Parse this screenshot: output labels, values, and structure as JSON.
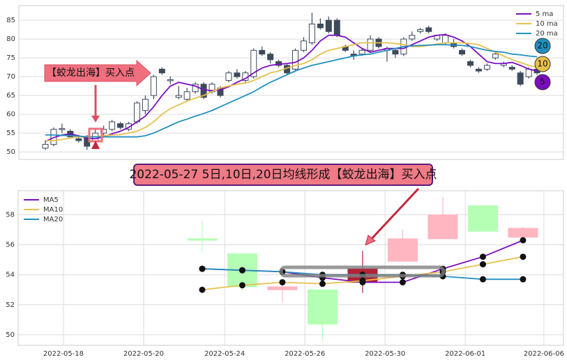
{
  "chart_data": [
    {
      "type": "candlestick",
      "annotation": "【蛟龙出海】买入点",
      "ylim": [
        48,
        88.9
      ],
      "yticks": [
        50,
        55,
        60,
        65,
        70,
        75,
        80,
        85
      ],
      "grid": true,
      "legend": "upper right",
      "up_color": "#ffffff",
      "down_color": "#3d4a5c",
      "open": [
        51,
        52,
        56,
        55.5,
        53.5,
        54,
        53,
        55,
        56,
        57.5,
        56,
        58,
        61,
        65,
        72,
        69,
        64.5,
        64,
        66,
        68,
        66,
        67,
        69,
        71,
        69,
        70,
        77,
        76,
        74,
        73,
        72,
        77,
        79,
        84,
        85,
        85,
        78,
        76,
        76,
        77,
        80,
        77,
        77,
        76,
        80,
        82,
        83,
        80,
        79,
        79,
        77,
        74,
        72,
        72,
        75,
        73,
        72.5,
        71,
        70,
        72
      ],
      "high": [
        53,
        56.5,
        57.5,
        56,
        54,
        54.5,
        56,
        57,
        58.5,
        58,
        58,
        63.5,
        65,
        70.5,
        72.5,
        70,
        67.5,
        67,
        68.5,
        68.5,
        68.5,
        67.5,
        71.5,
        72,
        71.5,
        77.5,
        78,
        76.5,
        74.5,
        73.5,
        77.5,
        80.5,
        87,
        85.5,
        86,
        85.5,
        78.5,
        77,
        77.5,
        81,
        80.5,
        78,
        77.5,
        80.5,
        82,
        83,
        83.5,
        81,
        81.5,
        80,
        77.5,
        74.5,
        72.5,
        73.5,
        76.5,
        74,
        73,
        71.5,
        72.5,
        72.5
      ],
      "low": [
        50.5,
        51.5,
        55,
        53.5,
        52.5,
        50.5,
        52,
        54,
        55.5,
        56,
        55.5,
        57.5,
        60,
        64,
        70.5,
        68,
        64,
        63.5,
        65.5,
        64,
        65.5,
        64.5,
        68.5,
        69.5,
        68.5,
        69.5,
        75.5,
        73.5,
        72.5,
        70.5,
        71.5,
        76.5,
        78.5,
        82.5,
        81.5,
        80.5,
        76.5,
        74.5,
        75.5,
        76.5,
        77.5,
        74,
        75,
        75.5,
        79.5,
        81.5,
        81.5,
        79.5,
        78.5,
        77.5,
        75.5,
        72.5,
        71,
        71.5,
        74.5,
        72.5,
        71.5,
        67.5,
        69.5,
        70.5
      ],
      "close": [
        52,
        56,
        56.2,
        54,
        53,
        51.5,
        55,
        56,
        58,
        56.5,
        57.5,
        63,
        64,
        70,
        71,
        69.2,
        65,
        66,
        68,
        64.5,
        68,
        65,
        71,
        70,
        71,
        77,
        76,
        74.5,
        73,
        71,
        77,
        79.5,
        84,
        83,
        82,
        81,
        77,
        75.5,
        77,
        80,
        78,
        77.5,
        76,
        80,
        81,
        82.5,
        82,
        81,
        81,
        78,
        76,
        73,
        71.5,
        73,
        76,
        73.5,
        72,
        68,
        72,
        71
      ],
      "series": [
        {
          "name": "5 ma",
          "color": "#7b0dbf",
          "end_label": "5",
          "values": [
            52.8,
            53.8,
            54.5,
            54.8,
            54.3,
            53.6,
            53.5,
            54,
            54.8,
            55.5,
            56.5,
            58,
            59.5,
            62,
            65,
            67.5,
            68.5,
            68,
            67.5,
            66.5,
            66.3,
            66.5,
            67.3,
            68.5,
            69.5,
            71,
            72.3,
            73,
            73.3,
            73.5,
            73.8,
            75,
            77,
            79.5,
            81,
            81,
            80.5,
            79,
            77.5,
            76.5,
            77,
            77.5,
            77.5,
            77.5,
            78.5,
            79.5,
            80.5,
            81,
            81.2,
            80.5,
            79.5,
            78,
            76,
            74,
            73.5,
            73.5,
            73.8,
            73,
            72,
            71.5
          ]
        },
        {
          "name": "10 ma",
          "color": "#e8c04a",
          "end_label": "10",
          "values": [
            53,
            53,
            53.3,
            53.7,
            54,
            54,
            54,
            54.3,
            54.5,
            54.6,
            55,
            55.5,
            56.5,
            58,
            60,
            61.5,
            62.5,
            63.5,
            64.3,
            65,
            66,
            67,
            67.5,
            68,
            68.3,
            69,
            70,
            71,
            71.5,
            72.3,
            73,
            73.5,
            74.5,
            76,
            77,
            77.5,
            78,
            78.5,
            79,
            79,
            79,
            79,
            78.8,
            78.5,
            78,
            78,
            78.3,
            78.7,
            79,
            79,
            79,
            78.8,
            78.5,
            77.5,
            76.5,
            75.5,
            74.5,
            73.8,
            73,
            72.5
          ]
        },
        {
          "name": "20 ma",
          "color": "#2190c0",
          "end_label": "20",
          "values": [
            54.5,
            54.5,
            54.4,
            54.3,
            54.2,
            54,
            54,
            54,
            54,
            54,
            54,
            54,
            54.3,
            55,
            56,
            57,
            58,
            58.7,
            59.5,
            60.2,
            61,
            62,
            63,
            64,
            65,
            66,
            67.3,
            68.5,
            69.5,
            70.5,
            71.5,
            72.3,
            73,
            73.5,
            74,
            74.5,
            75,
            75.5,
            75.8,
            76,
            76.5,
            77,
            77.5,
            78,
            78.2,
            78.3,
            78.4,
            78.5,
            78.5,
            78.4,
            78.3,
            78,
            77.5,
            77,
            76.7,
            76.5,
            76,
            75.8,
            75.5,
            75.3
          ]
        }
      ]
    },
    {
      "type": "candlestick",
      "title": "2022-05-27 5日,10日,20日均线形成【蛟龙出海】买入点",
      "x": [
        0,
        1,
        2,
        3,
        4,
        5,
        6,
        7,
        8
      ],
      "xlim": [
        -4.59,
        9.01
      ],
      "xticks": [
        {
          "value": -3.46,
          "label": "2022-05-18"
        },
        {
          "value": -1.46,
          "label": "2022-05-20"
        },
        {
          "value": 0.56,
          "label": "2022-05-24"
        },
        {
          "value": 2.56,
          "label": "2022-05-26"
        },
        {
          "value": 4.56,
          "label": "2022-05-30"
        },
        {
          "value": 6.56,
          "label": "2022-06-01"
        },
        {
          "value": 8.52,
          "label": "2022-06-06"
        }
      ],
      "ylim": [
        49.3,
        59.6
      ],
      "yticks": [
        50,
        52,
        54,
        56,
        58
      ],
      "grid": true,
      "legend": "upper left",
      "open": [
        56.4,
        55.4,
        53.0,
        53.0,
        53.5,
        54.9,
        56.4,
        58.6,
        56.5
      ],
      "high": [
        57.6,
        55.4,
        53.6,
        53.0,
        55.6,
        57.0,
        59.2,
        58.6,
        57.2
      ],
      "low": [
        55.5,
        52.9,
        52.2,
        49.6,
        52.8,
        54.9,
        56.4,
        56.9,
        56.4
      ],
      "close": [
        56.3,
        53.2,
        53.2,
        50.7,
        54.4,
        56.4,
        58.0,
        56.9,
        57.1
      ],
      "colors": [
        "#b5ffb5",
        "#b5ffb5",
        "#ffb6c1",
        "#b5ffb5",
        "#b22234",
        "#ffb6c1",
        "#ffb6c1",
        "#b5ffb5",
        "#ffb6c1"
      ],
      "series": [
        {
          "name": "MA5",
          "color": "#7b0dbf",
          "values": [
            54.4,
            54.3,
            54.2,
            53.8,
            53.5,
            53.5,
            54.4,
            55.2,
            56.3
          ]
        },
        {
          "name": "MA10",
          "color": "#e8c04a",
          "values": [
            53.0,
            53.3,
            53.5,
            53.4,
            53.6,
            53.9,
            54.2,
            54.7,
            55.2
          ]
        },
        {
          "name": "MA20",
          "color": "#2190c0",
          "values": [
            54.4,
            54.3,
            54.2,
            54.0,
            54.0,
            54.0,
            53.9,
            53.7,
            53.7
          ]
        }
      ]
    }
  ]
}
